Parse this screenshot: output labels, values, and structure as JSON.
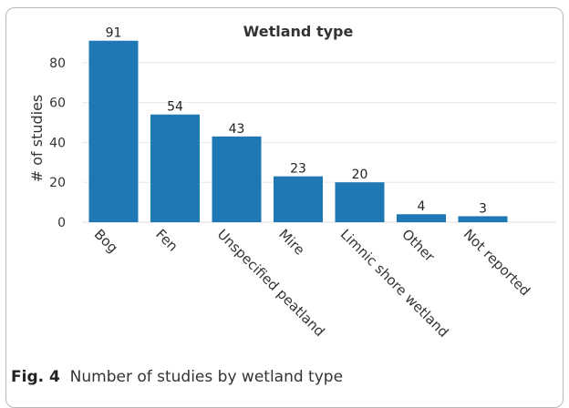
{
  "chart_data": {
    "type": "bar",
    "title": "Wetland type",
    "xlabel": "",
    "ylabel": "# of studies",
    "categories": [
      "Bog",
      "Fen",
      "Unspecified peatland",
      "Mire",
      "Limnic shore wetland",
      "Other",
      "Not reported"
    ],
    "values": [
      91,
      54,
      43,
      23,
      20,
      4,
      3
    ],
    "ylim": [
      0,
      100
    ],
    "yticks": [
      0,
      20,
      40,
      60,
      80
    ],
    "grid": true,
    "bar_color": "#1f77b4",
    "grid_color": "#e8e8e8"
  },
  "caption": {
    "label": "Fig. 4",
    "text": "Number of studies by wetland type"
  }
}
